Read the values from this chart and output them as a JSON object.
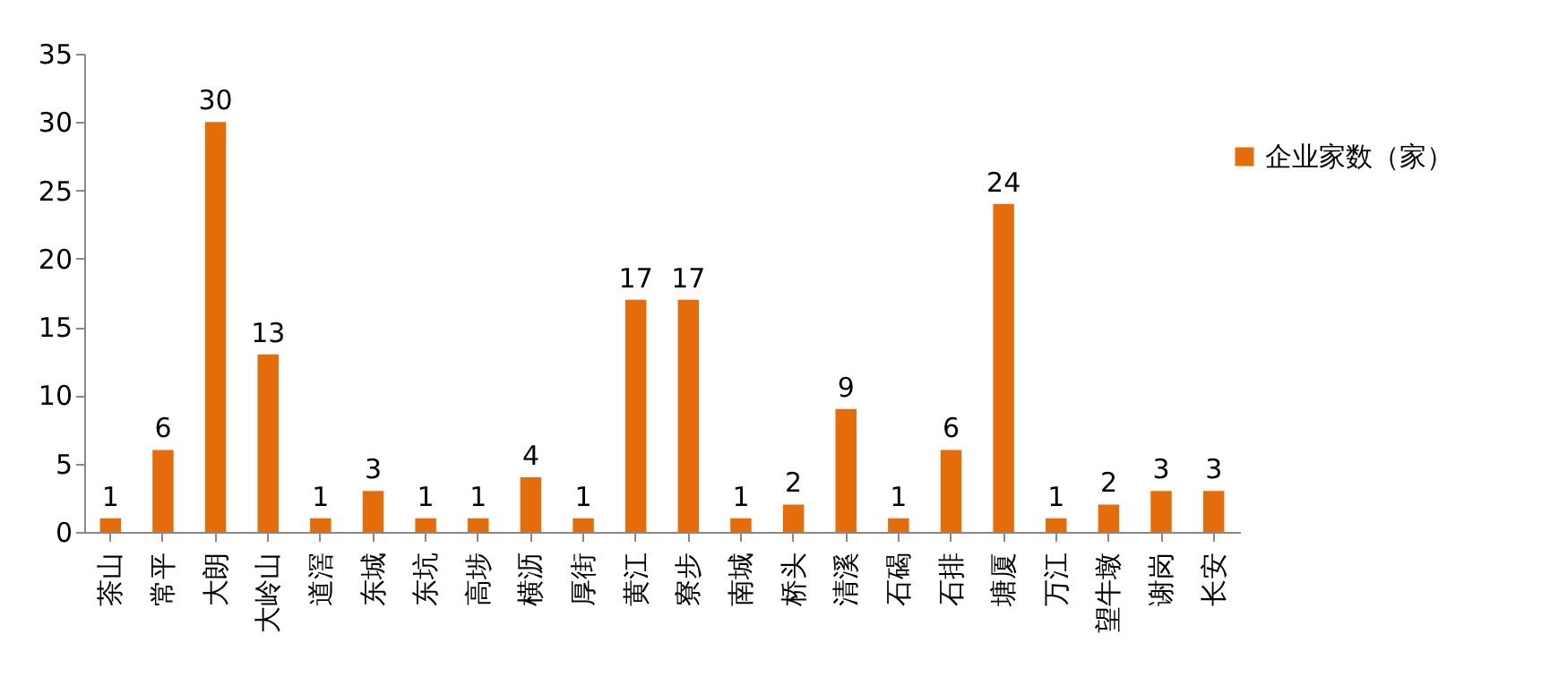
{
  "chart_data": {
    "type": "bar",
    "categories": [
      "茶山",
      "常平",
      "大朗",
      "大岭山",
      "道滘",
      "东城",
      "东坑",
      "高埗",
      "横沥",
      "厚街",
      "黄江",
      "寮步",
      "南城",
      "桥头",
      "清溪",
      "石碣",
      "石排",
      "塘厦",
      "万江",
      "望牛墩",
      "谢岗",
      "长安"
    ],
    "series": [
      {
        "name": "企业家数（家）",
        "color": "#e46c0a",
        "values": [
          1,
          6,
          30,
          13,
          1,
          3,
          1,
          1,
          4,
          1,
          17,
          17,
          1,
          2,
          9,
          1,
          6,
          24,
          1,
          2,
          3,
          3
        ]
      }
    ],
    "ylim": [
      0,
      35
    ],
    "yticks": [
      0,
      5,
      10,
      15,
      20,
      25,
      30,
      35
    ],
    "grid": false,
    "legend": "top right",
    "data_labels": true
  }
}
